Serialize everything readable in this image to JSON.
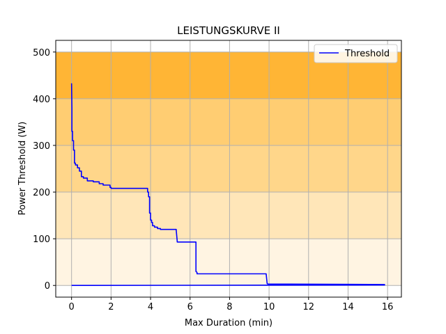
{
  "chart_data": {
    "type": "line",
    "title": "LEISTUNGSKURVE II",
    "xlabel": "Max Duration (min)",
    "ylabel": "Power Threshold (W)",
    "xlim": [
      -0.8,
      16.7
    ],
    "ylim": [
      -25,
      525
    ],
    "xticks": [
      0,
      2,
      4,
      6,
      8,
      10,
      12,
      14,
      16
    ],
    "yticks": [
      0,
      100,
      200,
      300,
      400,
      500
    ],
    "grid": true,
    "legend": {
      "position": "top-right",
      "entries": [
        "Threshold"
      ]
    },
    "bands": [
      {
        "from": 0,
        "to": 100,
        "color": "#fff4e2"
      },
      {
        "from": 100,
        "to": 200,
        "color": "#ffe6b8"
      },
      {
        "from": 200,
        "to": 300,
        "color": "#ffd68a"
      },
      {
        "from": 300,
        "to": 400,
        "color": "#ffcd72"
      },
      {
        "from": 400,
        "to": 500,
        "color": "#ffb535"
      }
    ],
    "series": [
      {
        "name": "Threshold",
        "color": "#0000ff",
        "x": [
          0,
          15.85,
          15.85,
          9.95,
          9.9,
          9.9,
          9.85,
          6.35,
          6.35,
          6.3,
          6.3,
          6.3,
          5.35,
          5.35,
          5.3,
          5.3,
          4.5,
          4.5,
          4.35,
          4.35,
          4.2,
          4.2,
          4.1,
          4.1,
          4.05,
          4.05,
          4.0,
          4.0,
          3.95,
          3.95,
          3.9,
          3.9,
          3.85,
          3.85,
          2.0,
          2.0,
          1.95,
          1.95,
          1.6,
          1.6,
          1.4,
          1.4,
          1.1,
          1.1,
          0.8,
          0.8,
          0.6,
          0.6,
          0.5,
          0.5,
          0.4,
          0.4,
          0.3,
          0.3,
          0.2,
          0.2,
          0.15,
          0.15,
          0.1,
          0.1,
          0.05,
          0.05,
          0.02,
          0.02,
          0.0
        ],
        "y": [
          0,
          1,
          2,
          3,
          4,
          5,
          25,
          25,
          28,
          30,
          60,
          93,
          93,
          95,
          118,
          120,
          120,
          122,
          122,
          125,
          125,
          128,
          128,
          135,
          135,
          140,
          140,
          155,
          155,
          190,
          190,
          200,
          200,
          208,
          208,
          210,
          210,
          215,
          215,
          218,
          218,
          222,
          222,
          224,
          224,
          230,
          230,
          233,
          233,
          245,
          245,
          252,
          252,
          258,
          258,
          262,
          262,
          290,
          290,
          310,
          310,
          330,
          330,
          380,
          433
        ]
      }
    ]
  }
}
